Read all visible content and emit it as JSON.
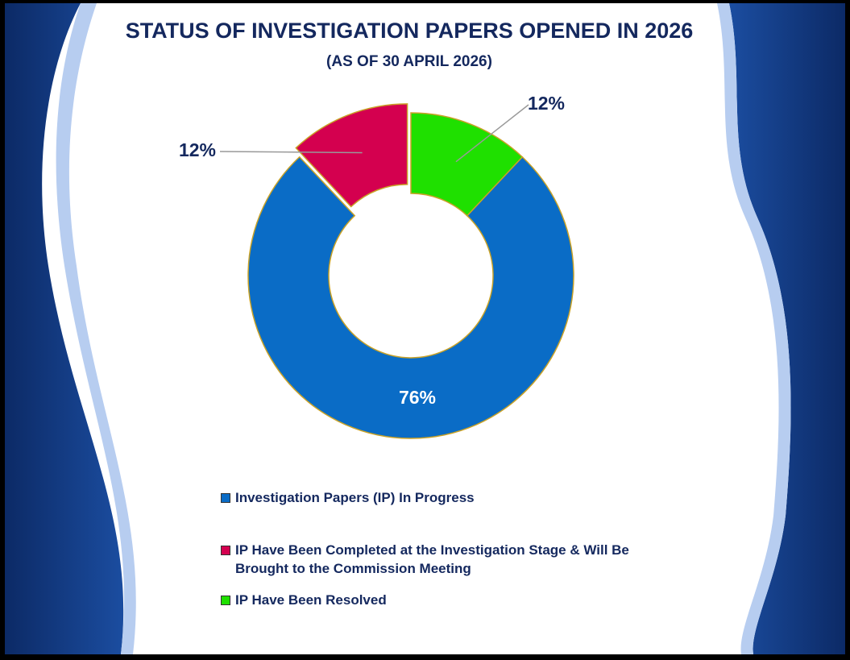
{
  "chart_data": {
    "type": "donut",
    "title": "STATUS OF INVESTIGATION PAPERS OPENED IN 2026",
    "subtitle": "(AS OF 30 APRIL 2026)",
    "categories": [
      "Investigation Papers (IP) In Progress",
      "IP Have Been Completed at the Investigation Stage & Will Be Brought to the Commission Meeting",
      "IP Have Been Resolved"
    ],
    "values": [
      76,
      12,
      12
    ],
    "value_labels": [
      "76%",
      "12%",
      "12%"
    ],
    "colors": [
      "#0a6cc6",
      "#d4004f",
      "#1fe000"
    ]
  }
}
